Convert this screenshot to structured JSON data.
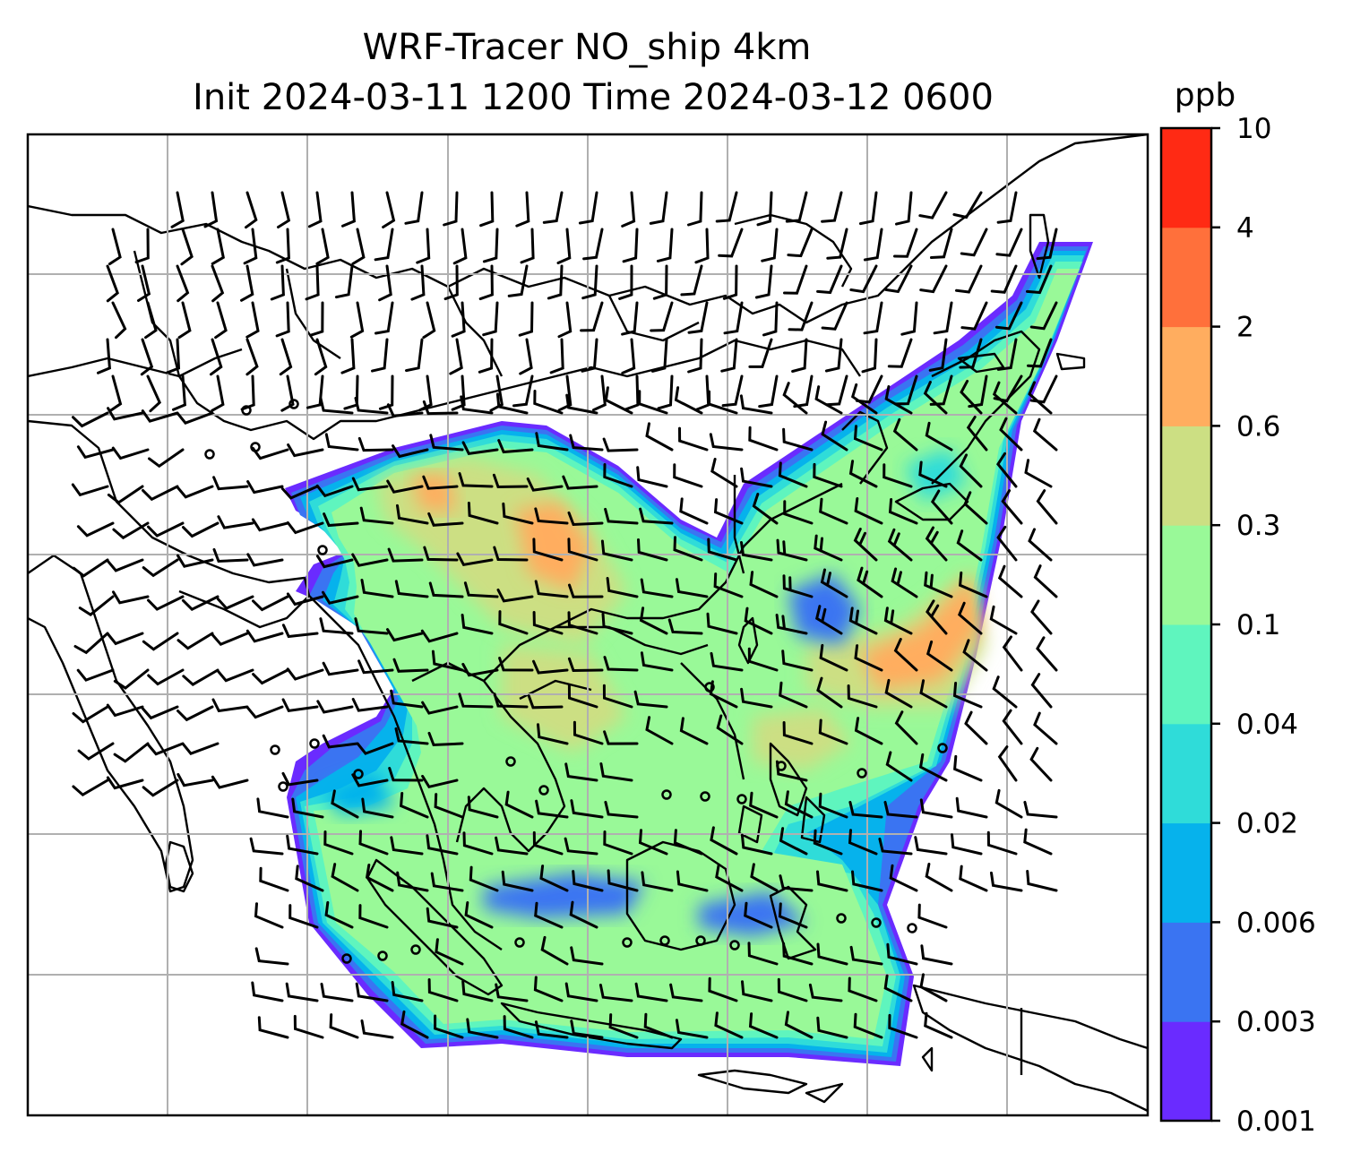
{
  "title": {
    "line1": "WRF-Tracer NO_ship 4km",
    "line2": "Init 2024-03-11 1200 Time 2024-03-12 0600"
  },
  "colorbar": {
    "unit": "ppb",
    "levels": [
      "0.001",
      "0.003",
      "0.006",
      "0.02",
      "0.04",
      "0.1",
      "0.3",
      "0.6",
      "2",
      "4",
      "10"
    ],
    "colors": [
      "#6a2bff",
      "#3a74f2",
      "#06b2ec",
      "#2fdcd9",
      "#5ff5be",
      "#99f998",
      "#ccdf83",
      "#ffad5f",
      "#ff703b",
      "#ff2a14"
    ]
  },
  "map": {
    "gridlines": true,
    "coastline_color": "#000000",
    "gridline_color": "#b0b0b0",
    "wind_barbs": true,
    "field": "NO_ship tracer concentration"
  }
}
